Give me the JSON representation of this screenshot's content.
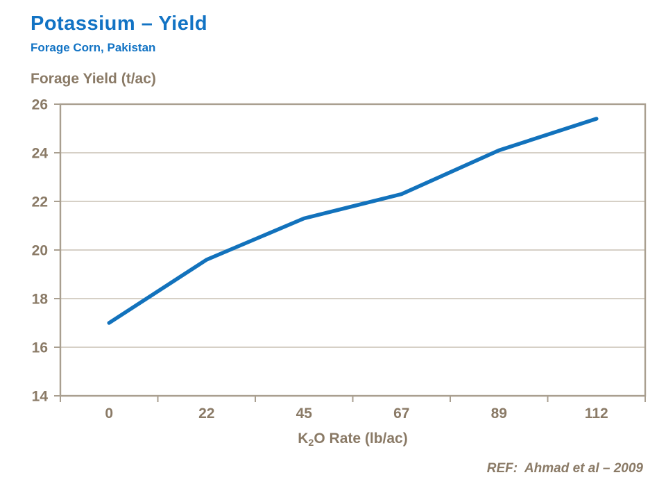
{
  "header": {
    "title": "Potassium – Yield",
    "subtitle": "Forage Corn, Pakistan"
  },
  "axes": {
    "y_title": "Forage Yield (t/ac)",
    "x_title_prefix": "K",
    "x_title_sub": "2",
    "x_title_suffix": "O Rate (lb/ac)"
  },
  "footer": {
    "ref": "REF:  Ahmad et al – 2009"
  },
  "colors": {
    "background": "#FFFFFF",
    "title_blue": "#1273C4",
    "line_blue": "#1272BC",
    "axis_text": "#8A7A66",
    "gridline": "#C9C1B4",
    "plot_border": "#A99F90"
  },
  "chart_data": {
    "type": "line",
    "title": "Potassium – Yield",
    "subtitle": "Forage Corn, Pakistan",
    "xlabel": "K2O Rate (lb/ac)",
    "ylabel": "Forage Yield (t/ac)",
    "categories": [
      "0",
      "22",
      "45",
      "67",
      "89",
      "112"
    ],
    "series": [
      {
        "name": "Forage Yield (t/ac)",
        "values": [
          17.0,
          19.6,
          21.3,
          22.3,
          24.1,
          25.4
        ]
      }
    ],
    "ylim": [
      14,
      26
    ],
    "ytick_step": 2,
    "yticks": [
      14,
      16,
      18,
      20,
      22,
      24,
      26
    ],
    "grid": "horizontal",
    "legend": "none"
  }
}
